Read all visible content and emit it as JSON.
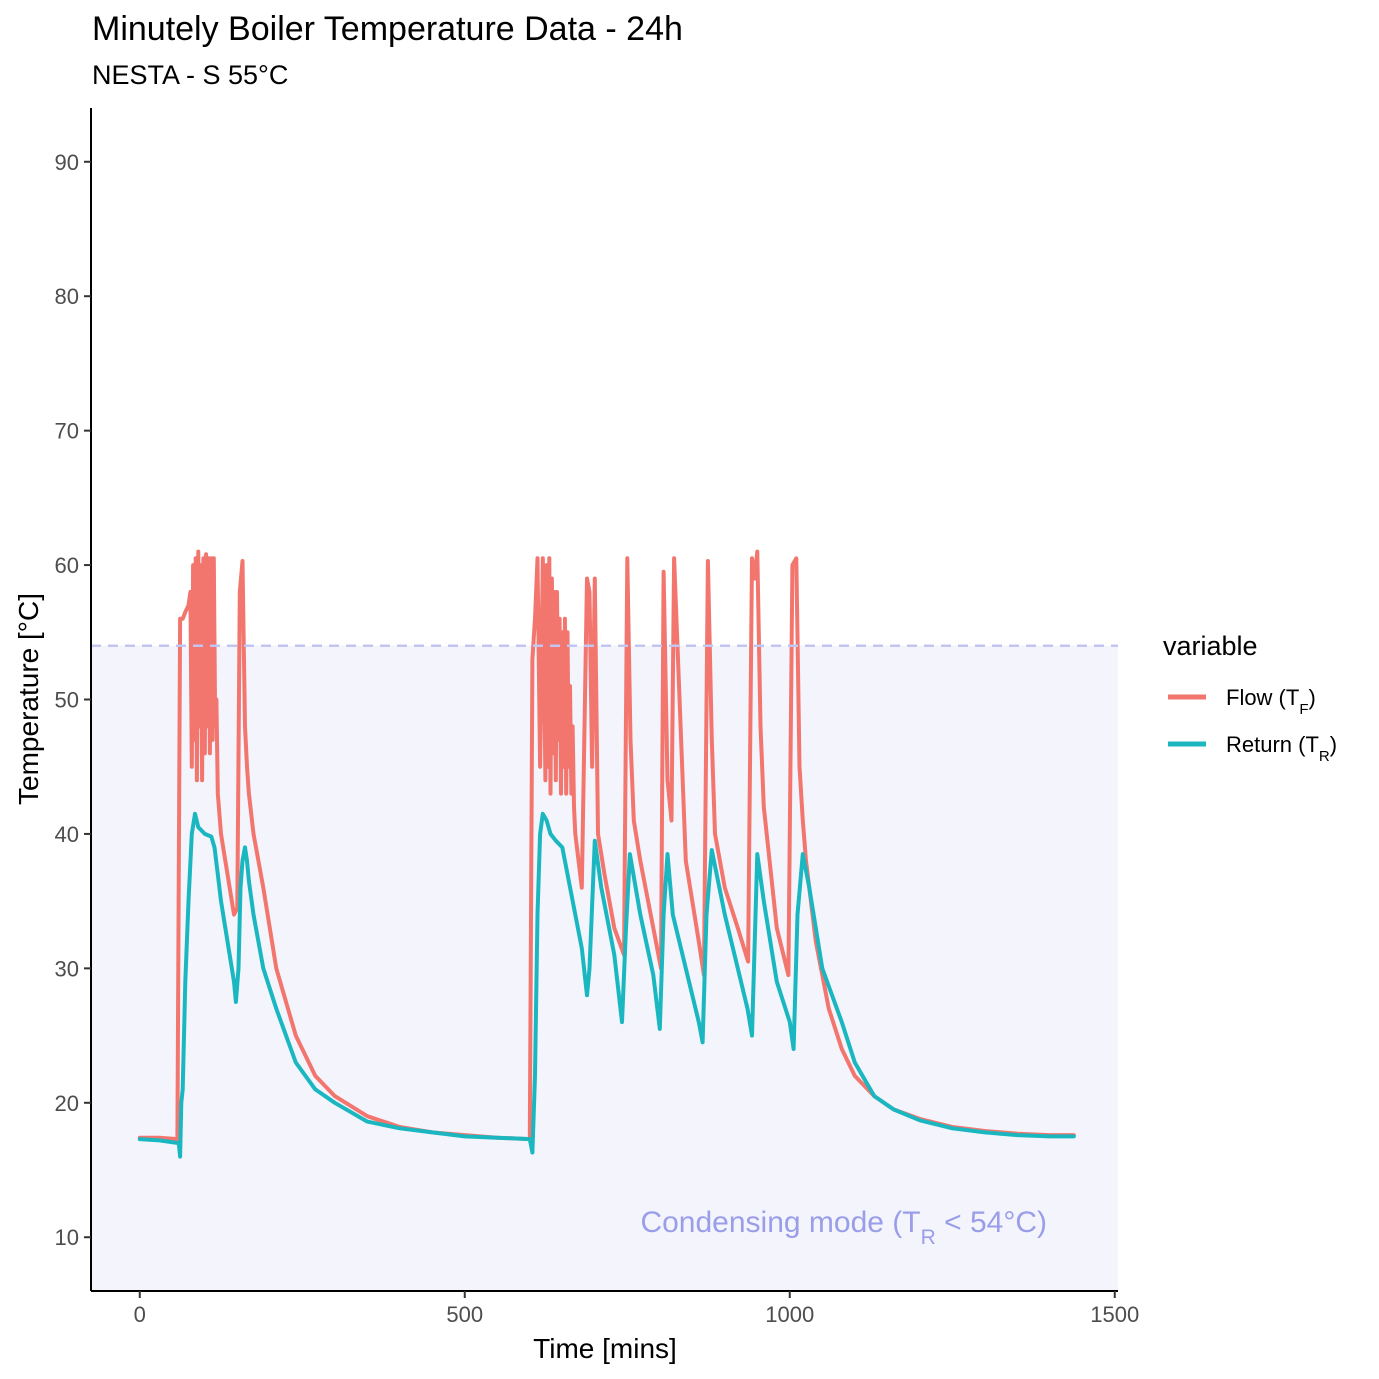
{
  "chart_data": {
    "type": "line",
    "title": "Minutely Boiler Temperature Data - 24h",
    "subtitle": "NESTA - S 55°C",
    "xlabel": "Time [mins]",
    "ylabel": "Temperature [°C]",
    "xlim": [
      -75,
      1505
    ],
    "ylim": [
      6,
      94
    ],
    "x_ticks": [
      0,
      500,
      1000,
      1500
    ],
    "y_ticks": [
      10,
      20,
      30,
      40,
      50,
      60,
      70,
      80,
      90
    ],
    "grid": false,
    "legend": {
      "title": "variable",
      "position": "right",
      "entries": [
        {
          "base": "Flow (T",
          "sub": "F",
          "end": ")"
        },
        {
          "base": "Return (T",
          "sub": "R",
          "end": ")"
        }
      ]
    },
    "threshold": {
      "y": 54,
      "style": "dashed",
      "shaded_region": "below",
      "annotation": {
        "base": "Condensing mode (T",
        "sub": "R",
        "end": " < 54°C)"
      }
    },
    "colors": {
      "flow": "#f2766e",
      "return": "#1bb7c1",
      "threshold": "#c2c5f2",
      "shade": "#f3f4fc",
      "annotation": "#9a9ee8"
    },
    "series": [
      {
        "name": "Flow (TF)",
        "color": "#f2766e",
        "x": [
          0,
          30,
          58,
          62,
          66,
          70,
          75,
          78,
          80,
          82,
          84,
          86,
          88,
          90,
          92,
          94,
          96,
          98,
          100,
          102,
          104,
          106,
          108,
          110,
          112,
          114,
          116,
          118,
          120,
          125,
          135,
          145,
          150,
          154,
          158,
          162,
          165,
          168,
          175,
          190,
          210,
          240,
          270,
          300,
          350,
          400,
          450,
          500,
          550,
          600,
          604,
          608,
          612,
          616,
          620,
          624,
          626,
          628,
          630,
          632,
          634,
          636,
          638,
          640,
          642,
          644,
          646,
          648,
          650,
          652,
          654,
          656,
          658,
          660,
          662,
          664,
          666,
          668,
          670,
          680,
          688,
          692,
          696,
          700,
          705,
          715,
          730,
          745,
          750,
          755,
          760,
          770,
          790,
          802,
          806,
          812,
          818,
          822,
          840,
          860,
          868,
          874,
          880,
          885,
          900,
          920,
          936,
          942,
          946,
          950,
          955,
          960,
          980,
          998,
          1004,
          1010,
          1015,
          1020,
          1025,
          1040,
          1060,
          1080,
          1100,
          1130,
          1160,
          1200,
          1250,
          1300,
          1350,
          1400,
          1437
        ],
        "y": [
          17.4,
          17.4,
          17.3,
          56,
          56,
          56.5,
          57,
          58,
          45,
          60,
          47,
          60.5,
          44,
          61,
          48,
          60,
          44,
          60.5,
          46,
          60.8,
          48,
          60.5,
          46,
          60.5,
          47,
          60.5,
          48,
          50,
          43,
          40,
          37,
          34,
          34.5,
          58,
          60.3,
          48,
          45,
          43,
          40,
          36,
          30,
          25,
          22,
          20.5,
          19,
          18.2,
          17.8,
          17.6,
          17.4,
          17.3,
          53,
          56,
          60.5,
          45,
          60.5,
          44,
          60,
          45,
          60.5,
          43,
          59,
          46,
          58,
          44,
          58,
          47,
          56,
          43,
          55,
          45,
          56,
          43,
          55,
          45,
          51,
          43,
          48,
          42,
          40,
          36,
          59,
          58,
          45,
          59,
          40,
          37,
          33,
          31,
          60.5,
          47,
          41,
          38,
          33,
          30,
          59.5,
          44,
          41,
          60.5,
          38,
          32,
          29.5,
          60.3,
          47,
          40,
          36,
          33,
          30.5,
          60.5,
          59,
          61,
          48,
          42,
          33,
          29.5,
          60,
          60.5,
          45,
          41,
          38,
          32,
          27,
          24,
          22,
          20.5,
          19.5,
          18.8,
          18.2,
          17.9,
          17.7,
          17.6,
          17.6
        ]
      },
      {
        "name": "Return (TR)",
        "color": "#1bb7c1",
        "x": [
          0,
          30,
          60,
          62,
          64,
          66,
          70,
          75,
          80,
          85,
          90,
          100,
          110,
          115,
          120,
          125,
          135,
          145,
          148,
          152,
          155,
          158,
          162,
          165,
          168,
          175,
          190,
          210,
          240,
          270,
          300,
          350,
          400,
          450,
          500,
          550,
          600,
          604,
          608,
          612,
          616,
          620,
          626,
          632,
          640,
          650,
          660,
          670,
          680,
          688,
          692,
          700,
          710,
          730,
          742,
          748,
          754,
          770,
          790,
          800,
          806,
          812,
          820,
          840,
          860,
          866,
          872,
          880,
          900,
          920,
          935,
          942,
          950,
          960,
          980,
          1000,
          1006,
          1012,
          1020,
          1030,
          1050,
          1080,
          1100,
          1130,
          1160,
          1200,
          1250,
          1300,
          1350,
          1400,
          1437
        ],
        "y": [
          17.3,
          17.2,
          17,
          16,
          20,
          21,
          29,
          35,
          40,
          41.5,
          40.5,
          40,
          39.8,
          39,
          37,
          35,
          32,
          29,
          27.5,
          30,
          36,
          38,
          39,
          38,
          36.5,
          34,
          30,
          27,
          23,
          21,
          20,
          18.6,
          18.1,
          17.8,
          17.5,
          17.4,
          17.3,
          16.3,
          22,
          34,
          40,
          41.5,
          41,
          40,
          39.5,
          39,
          36.5,
          34,
          31.5,
          28,
          30,
          39.5,
          36,
          31,
          26,
          33,
          38.5,
          34,
          29.5,
          25.5,
          34,
          38.5,
          34,
          30,
          26,
          24.5,
          34,
          38.8,
          34,
          30,
          27,
          25,
          38.5,
          35,
          29,
          26,
          24,
          34,
          38.5,
          36,
          30,
          26,
          23,
          20.5,
          19.5,
          18.7,
          18.1,
          17.8,
          17.6,
          17.5,
          17.5
        ]
      }
    ]
  }
}
